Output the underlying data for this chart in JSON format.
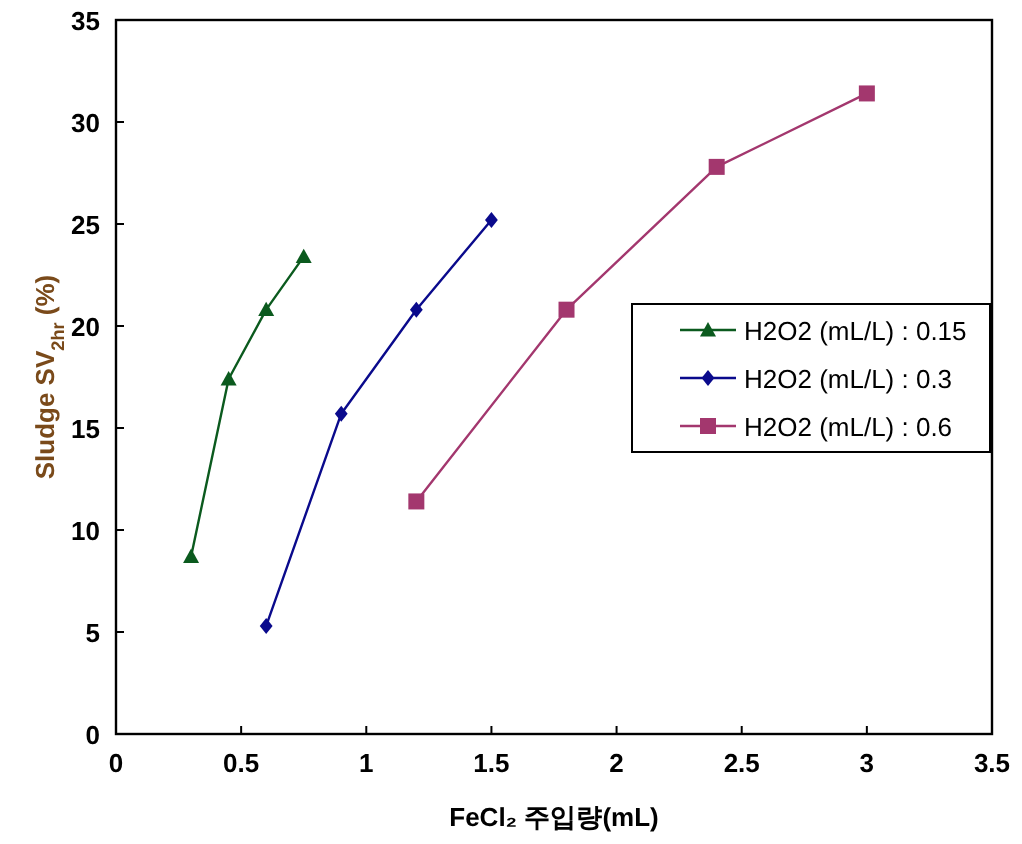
{
  "chart_data": {
    "type": "line",
    "xlabel": "FeCl₂   주입량(mL)",
    "ylabel": "Sludge SV$_{2hr}$ (%)",
    "xlim": [
      0,
      3.5
    ],
    "xticks": [
      0,
      0.5,
      1,
      1.5,
      2,
      2.5,
      3,
      3.5
    ],
    "ylim": [
      0,
      35
    ],
    "yticks": [
      0,
      5,
      10,
      15,
      20,
      25,
      30,
      35
    ],
    "legend": "right",
    "grid": false,
    "series": [
      {
        "name": "H2O2 (mL/L) : 0.15",
        "color": "#0b5a1e",
        "marker": "triangle",
        "x": [
          0.3,
          0.45,
          0.6,
          0.75
        ],
        "values": [
          8.7,
          17.4,
          20.8,
          23.4
        ]
      },
      {
        "name": "H2O2 (mL/L) : 0.3",
        "color": "#0a0a8c",
        "marker": "diamond",
        "x": [
          0.6,
          0.9,
          1.2,
          1.5
        ],
        "values": [
          5.3,
          15.7,
          20.8,
          25.2
        ]
      },
      {
        "name": "H2O2 (mL/L) : 0.6",
        "color": "#a3376e",
        "marker": "square",
        "x": [
          1.2,
          1.8,
          2.4,
          3.0
        ],
        "values": [
          11.4,
          20.8,
          27.8,
          31.4
        ]
      }
    ]
  }
}
